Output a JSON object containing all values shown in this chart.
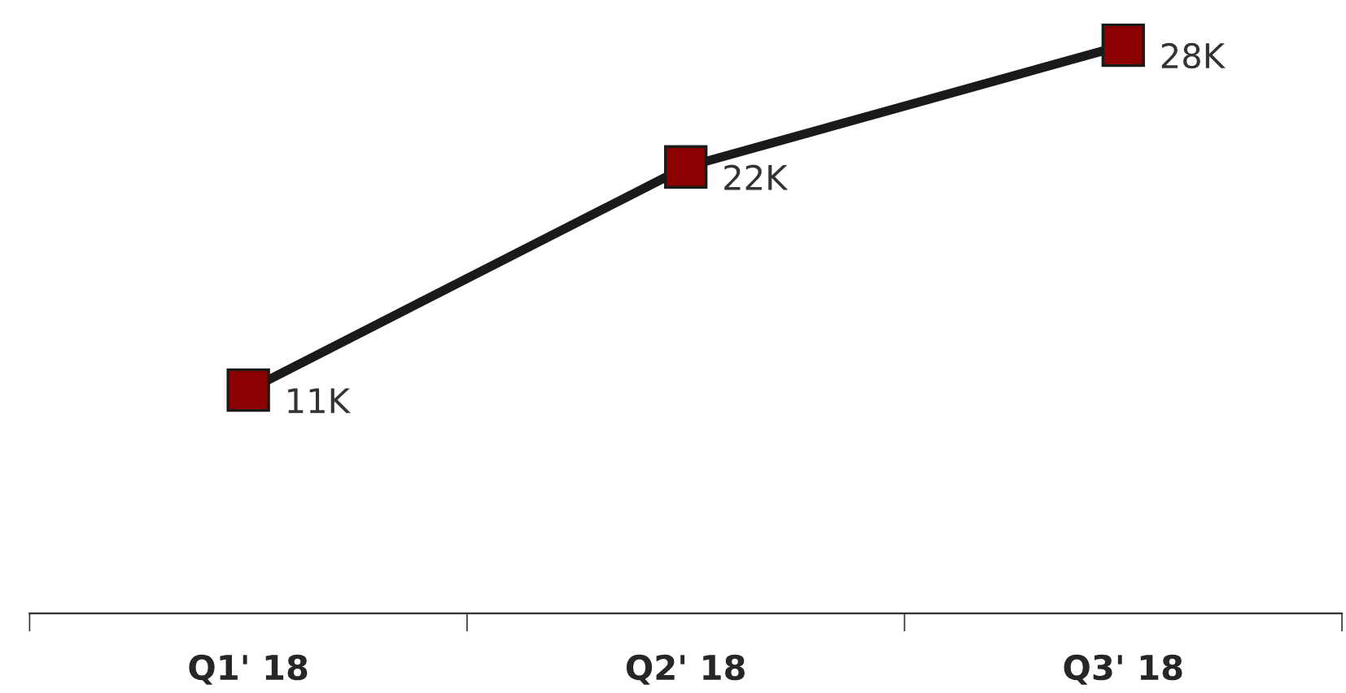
{
  "chart_data": {
    "type": "line",
    "categories": [
      "Q1' 18",
      "Q2' 18",
      "Q3' 18"
    ],
    "series": [
      {
        "color": "#1a1a1a",
        "values": [
          11000,
          22000,
          28000
        ],
        "value_labels": [
          "11K",
          "22K",
          "28K"
        ]
      }
    ],
    "marker": "square",
    "line_style": "solid",
    "grid": false
  }
}
